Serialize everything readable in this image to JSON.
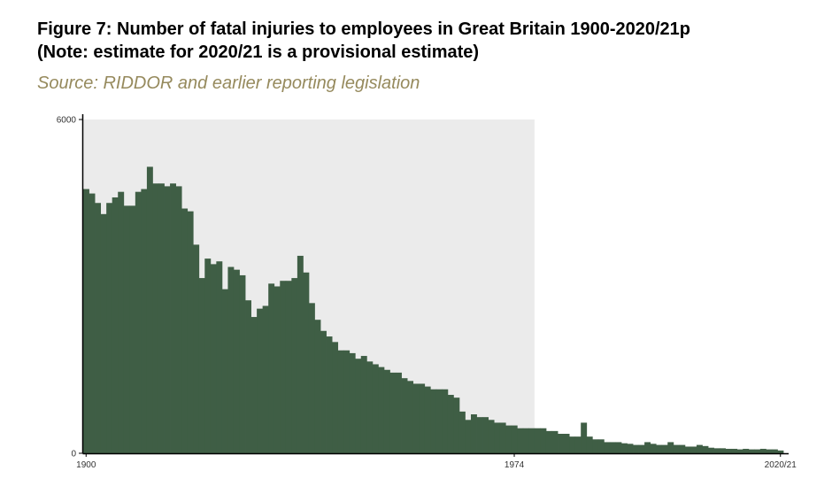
{
  "header": {
    "title_line1": "Figure 7: Number of fatal injuries to employees in Great Britain 1900-2020/21p",
    "title_line2": "(Note: estimate for 2020/21 is a provisional estimate)",
    "source": "Source: RIDDOR and earlier reporting legislation"
  },
  "colors": {
    "bar": "#3f5e45",
    "shaded_region": "#ebebeb",
    "source_text": "#968a5d",
    "axis": "#000000"
  },
  "chart_data": {
    "type": "bar",
    "title": "Figure 7: Number of fatal injuries to employees in Great Britain 1900-2020/21p",
    "xlabel": "",
    "ylabel": "",
    "ylim": [
      0,
      6000
    ],
    "y_ticks": [
      "0",
      "6000"
    ],
    "x_ticks": [
      {
        "label": "1900",
        "index": 0
      },
      {
        "label": "1974",
        "index": 74
      },
      {
        "label": "2020/21",
        "index": 120
      }
    ],
    "shaded_index_range": [
      0,
      78
    ],
    "grid": false,
    "legend": "none",
    "categories": [
      "1900",
      "1901",
      "1902",
      "1903",
      "1904",
      "1905",
      "1906",
      "1907",
      "1908",
      "1909",
      "1910",
      "1911",
      "1912",
      "1913",
      "1914",
      "1915",
      "1916",
      "1917",
      "1918",
      "1919",
      "1920",
      "1921",
      "1922",
      "1923",
      "1924",
      "1925",
      "1926",
      "1927",
      "1928",
      "1929",
      "1930",
      "1931",
      "1932",
      "1933",
      "1934",
      "1935",
      "1936",
      "1937",
      "1938",
      "1939",
      "1940",
      "1941",
      "1942",
      "1943",
      "1944",
      "1945",
      "1946",
      "1947",
      "1948",
      "1949",
      "1950",
      "1951",
      "1952",
      "1953",
      "1954",
      "1955",
      "1956",
      "1957",
      "1958",
      "1959",
      "1960",
      "1961",
      "1962",
      "1963",
      "1964",
      "1965",
      "1966",
      "1967",
      "1968",
      "1969",
      "1970",
      "1971",
      "1972",
      "1973",
      "1974",
      "1975",
      "1976",
      "1977",
      "1978",
      "1979",
      "1980",
      "1981",
      "1982",
      "1983",
      "1984",
      "1985",
      "1986",
      "1987",
      "1988",
      "1989",
      "1990",
      "1991",
      "1992",
      "1993",
      "1994",
      "1995",
      "1996",
      "1997",
      "1998",
      "1999",
      "2000",
      "2001",
      "2002",
      "2003",
      "2004",
      "2005",
      "2006",
      "2007",
      "2008",
      "2009",
      "2010",
      "2011",
      "2012",
      "2013",
      "2014",
      "2015",
      "2016",
      "2017",
      "2018",
      "2019",
      "2020/21"
    ],
    "values": [
      4750,
      4670,
      4500,
      4300,
      4500,
      4600,
      4700,
      4450,
      4450,
      4700,
      4750,
      5150,
      4850,
      4850,
      4800,
      4850,
      4800,
      4400,
      4350,
      3750,
      3150,
      3500,
      3400,
      3450,
      2950,
      3350,
      3300,
      3200,
      2750,
      2450,
      2600,
      2650,
      3050,
      3000,
      3100,
      3100,
      3150,
      3550,
      3250,
      2700,
      2400,
      2200,
      2100,
      2000,
      1850,
      1850,
      1800,
      1700,
      1750,
      1650,
      1600,
      1550,
      1500,
      1450,
      1450,
      1350,
      1300,
      1250,
      1250,
      1200,
      1150,
      1150,
      1150,
      1050,
      1000,
      750,
      600,
      700,
      650,
      650,
      600,
      550,
      550,
      500,
      500,
      450,
      450,
      450,
      450,
      450,
      400,
      400,
      350,
      350,
      300,
      300,
      550,
      300,
      250,
      250,
      200,
      200,
      200,
      180,
      170,
      150,
      150,
      200,
      170,
      150,
      150,
      200,
      150,
      150,
      120,
      120,
      150,
      130,
      100,
      90,
      90,
      80,
      80,
      70,
      80,
      70,
      70,
      80,
      70,
      70,
      50
    ]
  }
}
